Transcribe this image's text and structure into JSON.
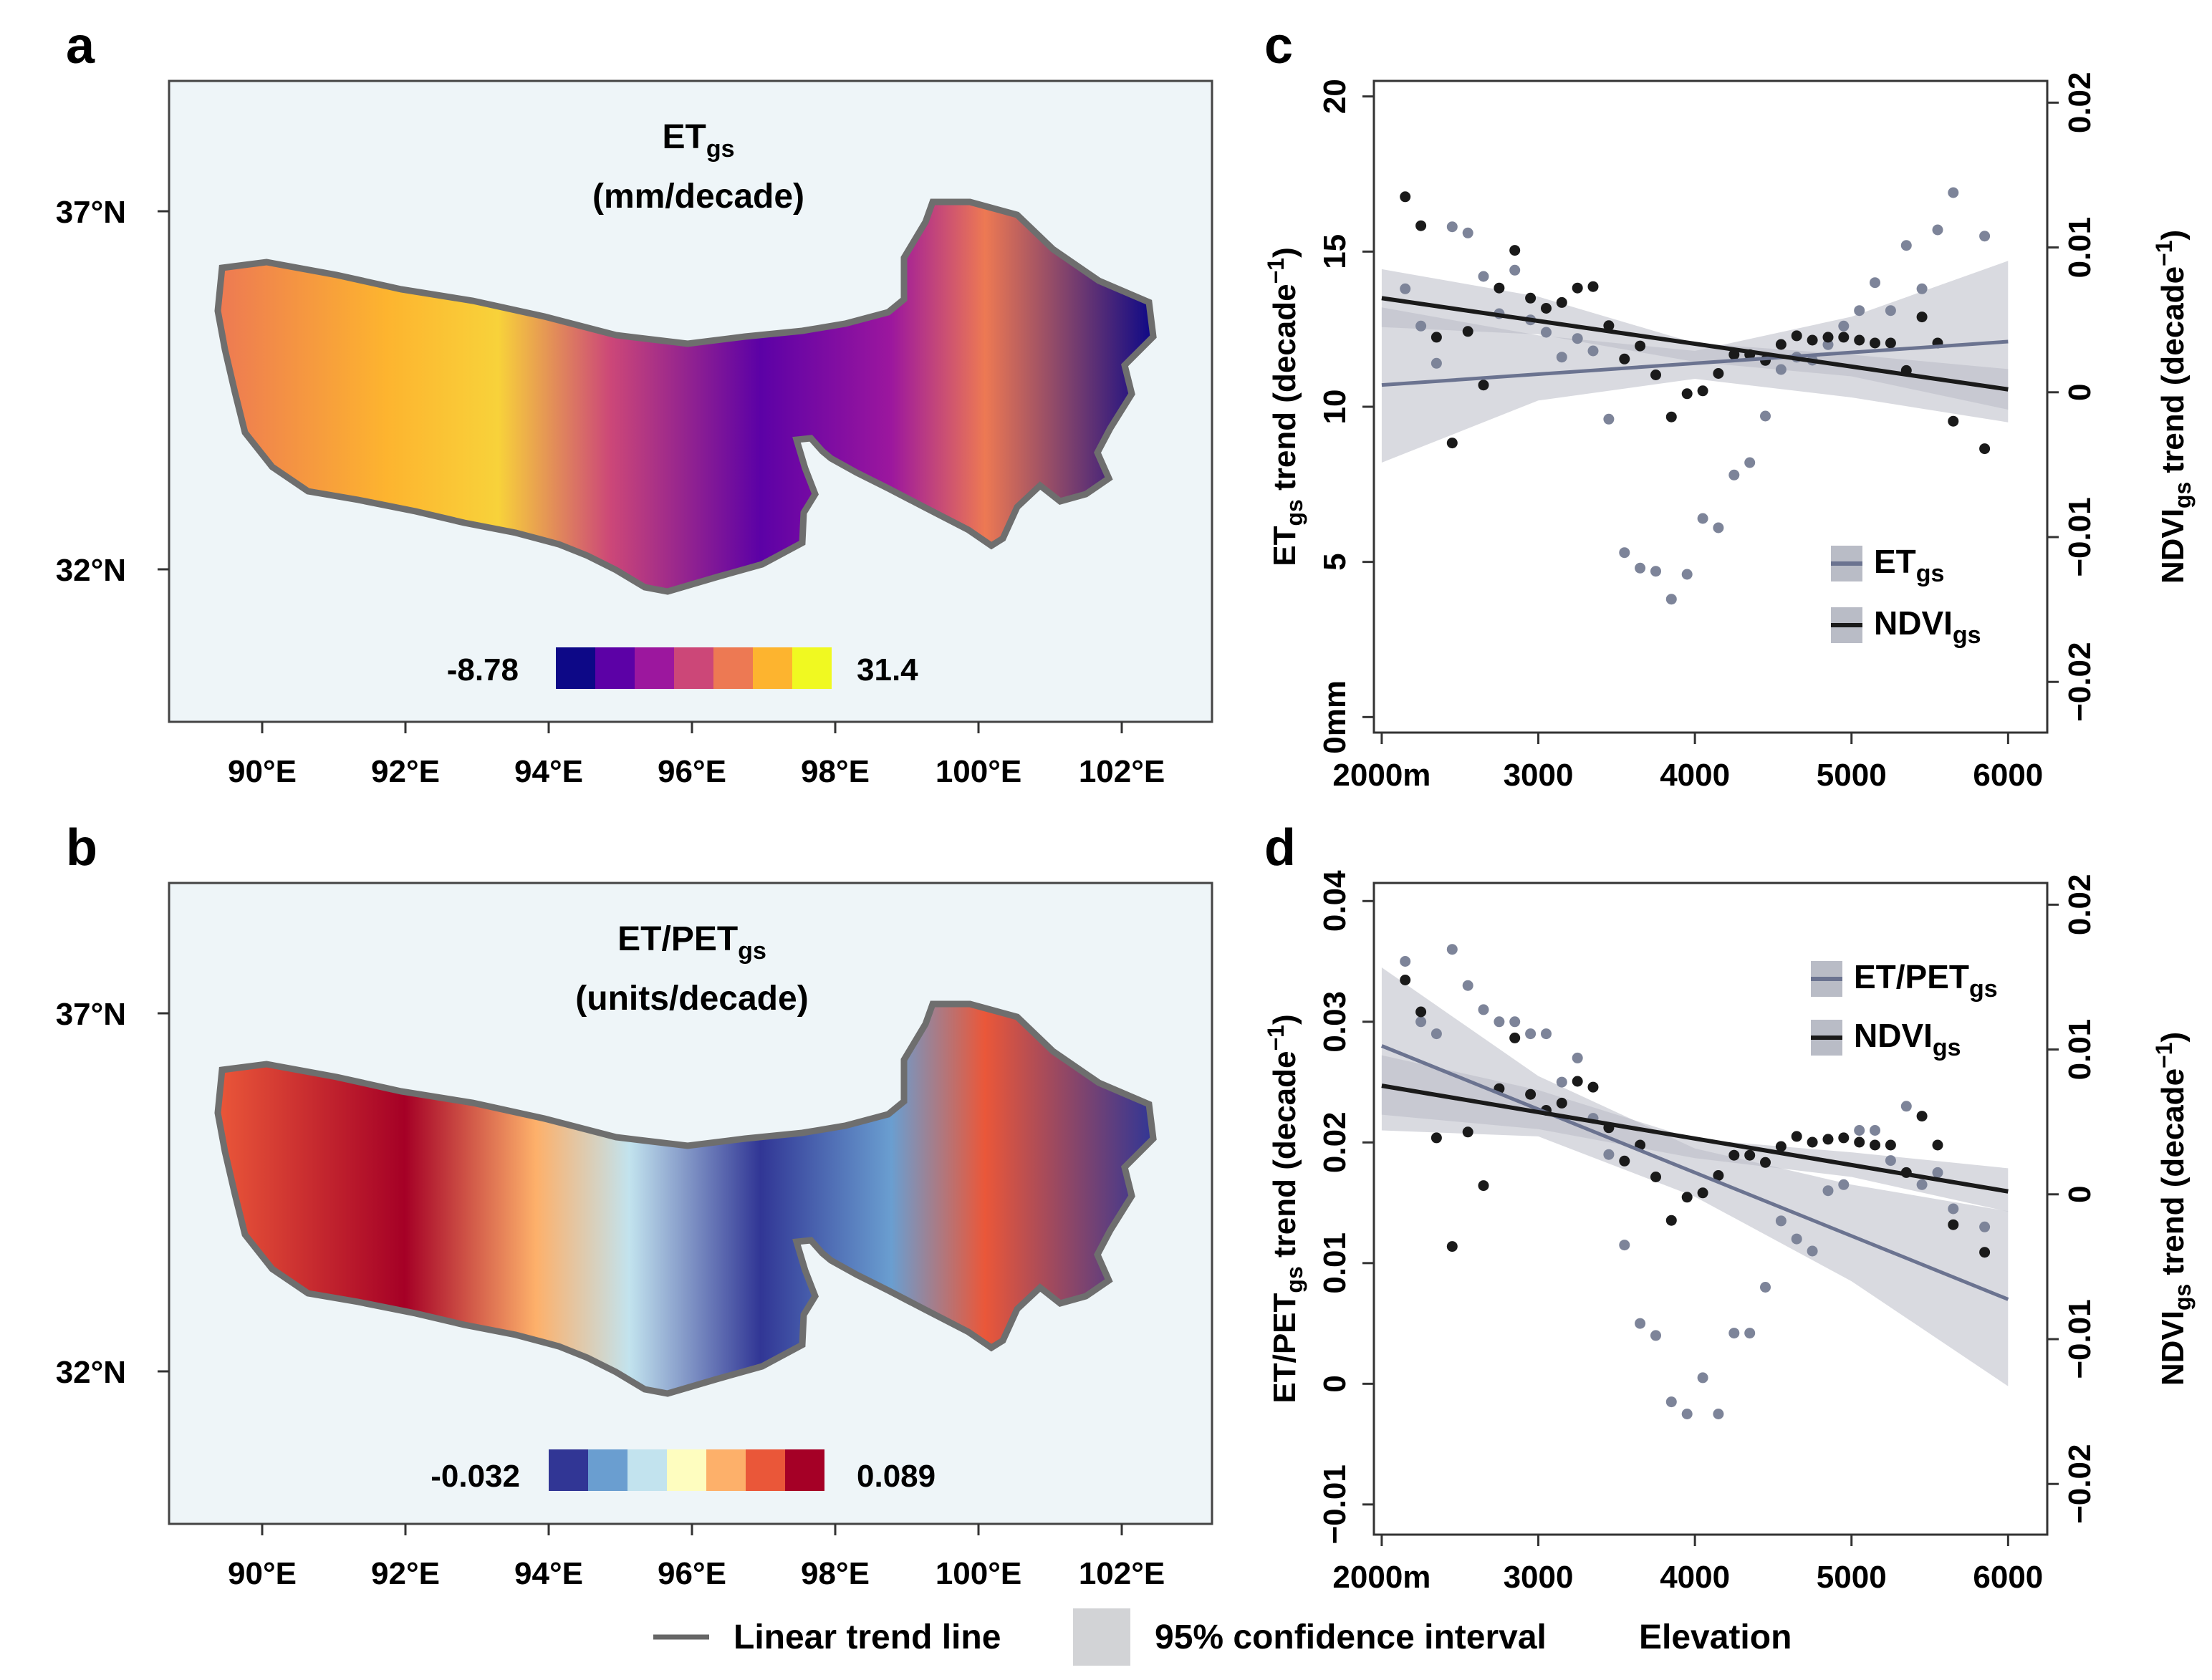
{
  "panels": {
    "a": {
      "letter": "a",
      "title_main": "ET",
      "title_sub": "gs",
      "title_unit": "(mm/decade)",
      "lat_ticks": [
        "37°N",
        "32°N"
      ],
      "lon_ticks": [
        "90°E",
        "92°E",
        "94°E",
        "96°E",
        "98°E",
        "100°E",
        "102°E"
      ],
      "colorbar": {
        "min_label": "-8.78",
        "max_label": "31.4",
        "colors": [
          "#0d0887",
          "#5c01a6",
          "#9c179e",
          "#cc4778",
          "#ed7953",
          "#fdb42f",
          "#f0f921"
        ]
      }
    },
    "b": {
      "letter": "b",
      "title_main": "ET/PET",
      "title_sub": "gs",
      "title_unit": "(units/decade)",
      "lat_ticks": [
        "37°N",
        "32°N"
      ],
      "lon_ticks": [
        "90°E",
        "92°E",
        "94°E",
        "96°E",
        "98°E",
        "100°E",
        "102°E"
      ],
      "colorbar": {
        "min_label": "-0.032",
        "max_label": "0.089",
        "colors": [
          "#313695",
          "#6a9ed0",
          "#c2e3ee",
          "#fefdbf",
          "#fdb06a",
          "#ea5739",
          "#a50026"
        ]
      }
    },
    "c": {
      "letter": "c",
      "ylabel_left_main": "ET",
      "ylabel_left_sub": "gs",
      "ylabel_left_rest": " trend (decade",
      "ylabel_left_sup": "−1",
      "ylabel_left_end": ")",
      "ylabel_right_main": "NDVI",
      "ylabel_right_sub": "gs",
      "ylabel_right_rest": " trend (decade",
      "ylabel_right_sup": "−1",
      "ylabel_right_end": ")",
      "left_ticks": [
        "0mm",
        "5",
        "10",
        "15",
        "20"
      ],
      "right_ticks": [
        "−0.02",
        "−0.01",
        "0",
        "0.01",
        "0.02"
      ],
      "x_ticks": [
        "2000m",
        "3000",
        "4000",
        "5000",
        "6000"
      ],
      "legend": [
        {
          "main": "ET",
          "sub": "gs"
        },
        {
          "main": "NDVI",
          "sub": "gs"
        }
      ]
    },
    "d": {
      "letter": "d",
      "ylabel_left_main": "ET/PET",
      "ylabel_left_sub": "gs",
      "ylabel_left_rest": " trend (decade",
      "ylabel_left_sup": "−1",
      "ylabel_left_end": ")",
      "ylabel_right_main": "NDVI",
      "ylabel_right_sub": "gs",
      "ylabel_right_rest": " trend (decade",
      "ylabel_right_sup": "−1",
      "ylabel_right_end": ")",
      "left_ticks": [
        "−0.01",
        "0",
        "0.01",
        "0.02",
        "0.03",
        "0.04"
      ],
      "right_ticks": [
        "−0.02",
        "−0.01",
        "0",
        "0.01",
        "0.02"
      ],
      "x_ticks": [
        "2000m",
        "3000",
        "4000",
        "5000",
        "6000"
      ],
      "legend": [
        {
          "main": "ET/PET",
          "sub": "gs"
        },
        {
          "main": "NDVI",
          "sub": "gs"
        }
      ]
    }
  },
  "bottom_legend": {
    "trend_line": "Linear trend line",
    "ci": "95% confidence interval",
    "elevation": "Elevation"
  },
  "colors": {
    "map_bg": "#eef5f8",
    "et_series": "#6b7390",
    "ndvi_series": "#1a1a1a",
    "ci_fill": "#b9bcc6"
  },
  "chart_data": [
    {
      "type": "scatter",
      "panel": "c",
      "xlabel": "Elevation",
      "xlim": [
        1950,
        6250
      ],
      "ylabel": "ETgs trend (decade−1)",
      "ylim": [
        -0.5,
        20.5
      ],
      "y2label": "NDVIgs trend (decade−1)",
      "y2lim": [
        -0.0235,
        0.0215
      ],
      "series": [
        {
          "name": "ETgs",
          "axis": "left",
          "x": [
            2150,
            2250,
            2350,
            2450,
            2550,
            2650,
            2750,
            2850,
            2950,
            3050,
            3150,
            3250,
            3350,
            3450,
            3550,
            3650,
            3750,
            3850,
            3950,
            4050,
            4150,
            4250,
            4350,
            4450,
            4550,
            4650,
            4750,
            4850,
            4950,
            5050,
            5150,
            5250,
            5350,
            5450,
            5550,
            5650,
            5850
          ],
          "y": [
            13.8,
            12.6,
            11.4,
            15.8,
            15.6,
            14.2,
            13.0,
            14.4,
            12.8,
            12.4,
            11.6,
            12.2,
            11.8,
            9.6,
            5.3,
            4.8,
            4.7,
            3.8,
            4.6,
            6.4,
            6.1,
            7.8,
            8.2,
            9.7,
            11.2,
            11.6,
            11.5,
            12.0,
            12.6,
            13.1,
            14.0,
            13.1,
            15.2,
            13.8,
            15.7,
            16.9,
            15.5
          ],
          "trend": {
            "start": [
              2000,
              10.7
            ],
            "end": [
              6000,
              12.1
            ]
          },
          "ci": {
            "x": [
              2000,
              3000,
              4000,
              5000,
              6000
            ],
            "lower": [
              8.2,
              10.2,
              10.9,
              10.3,
              9.5
            ],
            "upper": [
              13.2,
              12.3,
              11.8,
              12.9,
              14.7
            ]
          }
        },
        {
          "name": "NDVIgs",
          "axis": "right",
          "x": [
            2150,
            2250,
            2350,
            2450,
            2550,
            2650,
            2750,
            2850,
            2950,
            3050,
            3150,
            3250,
            3350,
            3450,
            3550,
            3650,
            3750,
            3850,
            3950,
            4050,
            4150,
            4250,
            4350,
            4450,
            4550,
            4650,
            4750,
            4850,
            4950,
            5050,
            5150,
            5250,
            5350,
            5450,
            5550,
            5650,
            5850
          ],
          "y": [
            0.0135,
            0.0115,
            0.0038,
            -0.0035,
            0.0042,
            0.0005,
            0.0072,
            0.0098,
            0.0065,
            0.0058,
            0.0062,
            0.0072,
            0.0073,
            0.0046,
            0.0023,
            0.0032,
            0.0012,
            -0.0017,
            -0.0001,
            0.0001,
            0.0013,
            0.0026,
            0.0026,
            0.0022,
            0.0033,
            0.0039,
            0.0036,
            0.0038,
            0.0038,
            0.0036,
            0.0034,
            0.0034,
            0.0015,
            0.0052,
            0.0034,
            -0.002,
            -0.0039
          ],
          "trend": {
            "start": [
              2000,
              0.0065
            ],
            "end": [
              6000,
              0.0002
            ]
          },
          "ci": {
            "x": [
              2000,
              3000,
              4000,
              5000,
              6000
            ],
            "lower": [
              0.0045,
              0.004,
              0.0021,
              0.0011,
              -0.0012
            ],
            "upper": [
              0.0085,
              0.0066,
              0.0034,
              0.0026,
              0.0016
            ]
          }
        }
      ]
    },
    {
      "type": "scatter",
      "panel": "d",
      "xlabel": "Elevation",
      "xlim": [
        1950,
        6250
      ],
      "ylabel": "ET/PETgs trend (decade−1)",
      "ylim": [
        -0.0125,
        0.0415
      ],
      "y2label": "NDVIgs trend (decade−1)",
      "y2lim": [
        -0.0235,
        0.0215
      ],
      "series": [
        {
          "name": "ET/PETgs",
          "axis": "left",
          "x": [
            2150,
            2250,
            2350,
            2450,
            2550,
            2650,
            2750,
            2850,
            2950,
            3050,
            3150,
            3250,
            3350,
            3450,
            3550,
            3650,
            3750,
            3850,
            3950,
            4050,
            4150,
            4250,
            4350,
            4450,
            4550,
            4650,
            4750,
            4850,
            4950,
            5050,
            5150,
            5250,
            5350,
            5450,
            5550,
            5650,
            5850
          ],
          "y": [
            0.035,
            0.03,
            0.029,
            0.036,
            0.033,
            0.031,
            0.03,
            0.03,
            0.029,
            0.029,
            0.025,
            0.027,
            0.022,
            0.019,
            0.0115,
            0.005,
            0.004,
            -0.0015,
            -0.0025,
            0.0005,
            -0.0025,
            0.0042,
            0.0042,
            0.008,
            0.0135,
            0.012,
            0.011,
            0.016,
            0.0165,
            0.021,
            0.021,
            0.0185,
            0.023,
            0.0165,
            0.0175,
            0.0145,
            0.013
          ]
        },
        {
          "name": "NDVIgs",
          "axis": "right",
          "x": [
            2150,
            2250,
            2350,
            2450,
            2550,
            2650,
            2750,
            2850,
            2950,
            3050,
            3150,
            3250,
            3350,
            3450,
            3550,
            3650,
            3750,
            3850,
            3950,
            4050,
            4150,
            4250,
            4350,
            4450,
            4550,
            4650,
            4750,
            4850,
            4950,
            5050,
            5150,
            5250,
            5350,
            5450,
            5550,
            5650,
            5850
          ],
          "y": [
            0.0148,
            0.0126,
            0.0039,
            -0.0036,
            0.0043,
            0.0006,
            0.0073,
            0.0108,
            0.0069,
            0.0058,
            0.0063,
            0.0078,
            0.0074,
            0.0046,
            0.0023,
            0.0034,
            0.0012,
            -0.0018,
            -0.0002,
            0.0001,
            0.0013,
            0.0027,
            0.0027,
            0.0022,
            0.0033,
            0.004,
            0.0036,
            0.0038,
            0.0039,
            0.0036,
            0.0034,
            0.0034,
            0.0015,
            0.0054,
            0.0034,
            -0.0021,
            -0.004
          ]
        }
      ],
      "trends": [
        {
          "name": "ET/PETgs",
          "axis": "left",
          "start": [
            2000,
            0.028
          ],
          "end": [
            6000,
            0.007
          ],
          "ci": {
            "x": [
              2000,
              3000,
              4000,
              5000,
              6000
            ],
            "lower": [
              0.021,
              0.0205,
              0.0155,
              0.0085,
              -0.0002
            ],
            "upper": [
              0.0345,
              0.0255,
              0.0195,
              0.0165,
              0.0143
            ]
          }
        },
        {
          "name": "NDVIgs",
          "axis": "right",
          "start": [
            2000,
            0.0075
          ],
          "end": [
            6000,
            0.0002
          ],
          "ci": {
            "x": [
              2000,
              3000,
              4000,
              5000,
              6000
            ],
            "lower": [
              0.0055,
              0.0045,
              0.0025,
              0.0012,
              -0.0012
            ],
            "upper": [
              0.0096,
              0.0072,
              0.0038,
              0.0029,
              0.0018
            ]
          }
        }
      ]
    }
  ]
}
